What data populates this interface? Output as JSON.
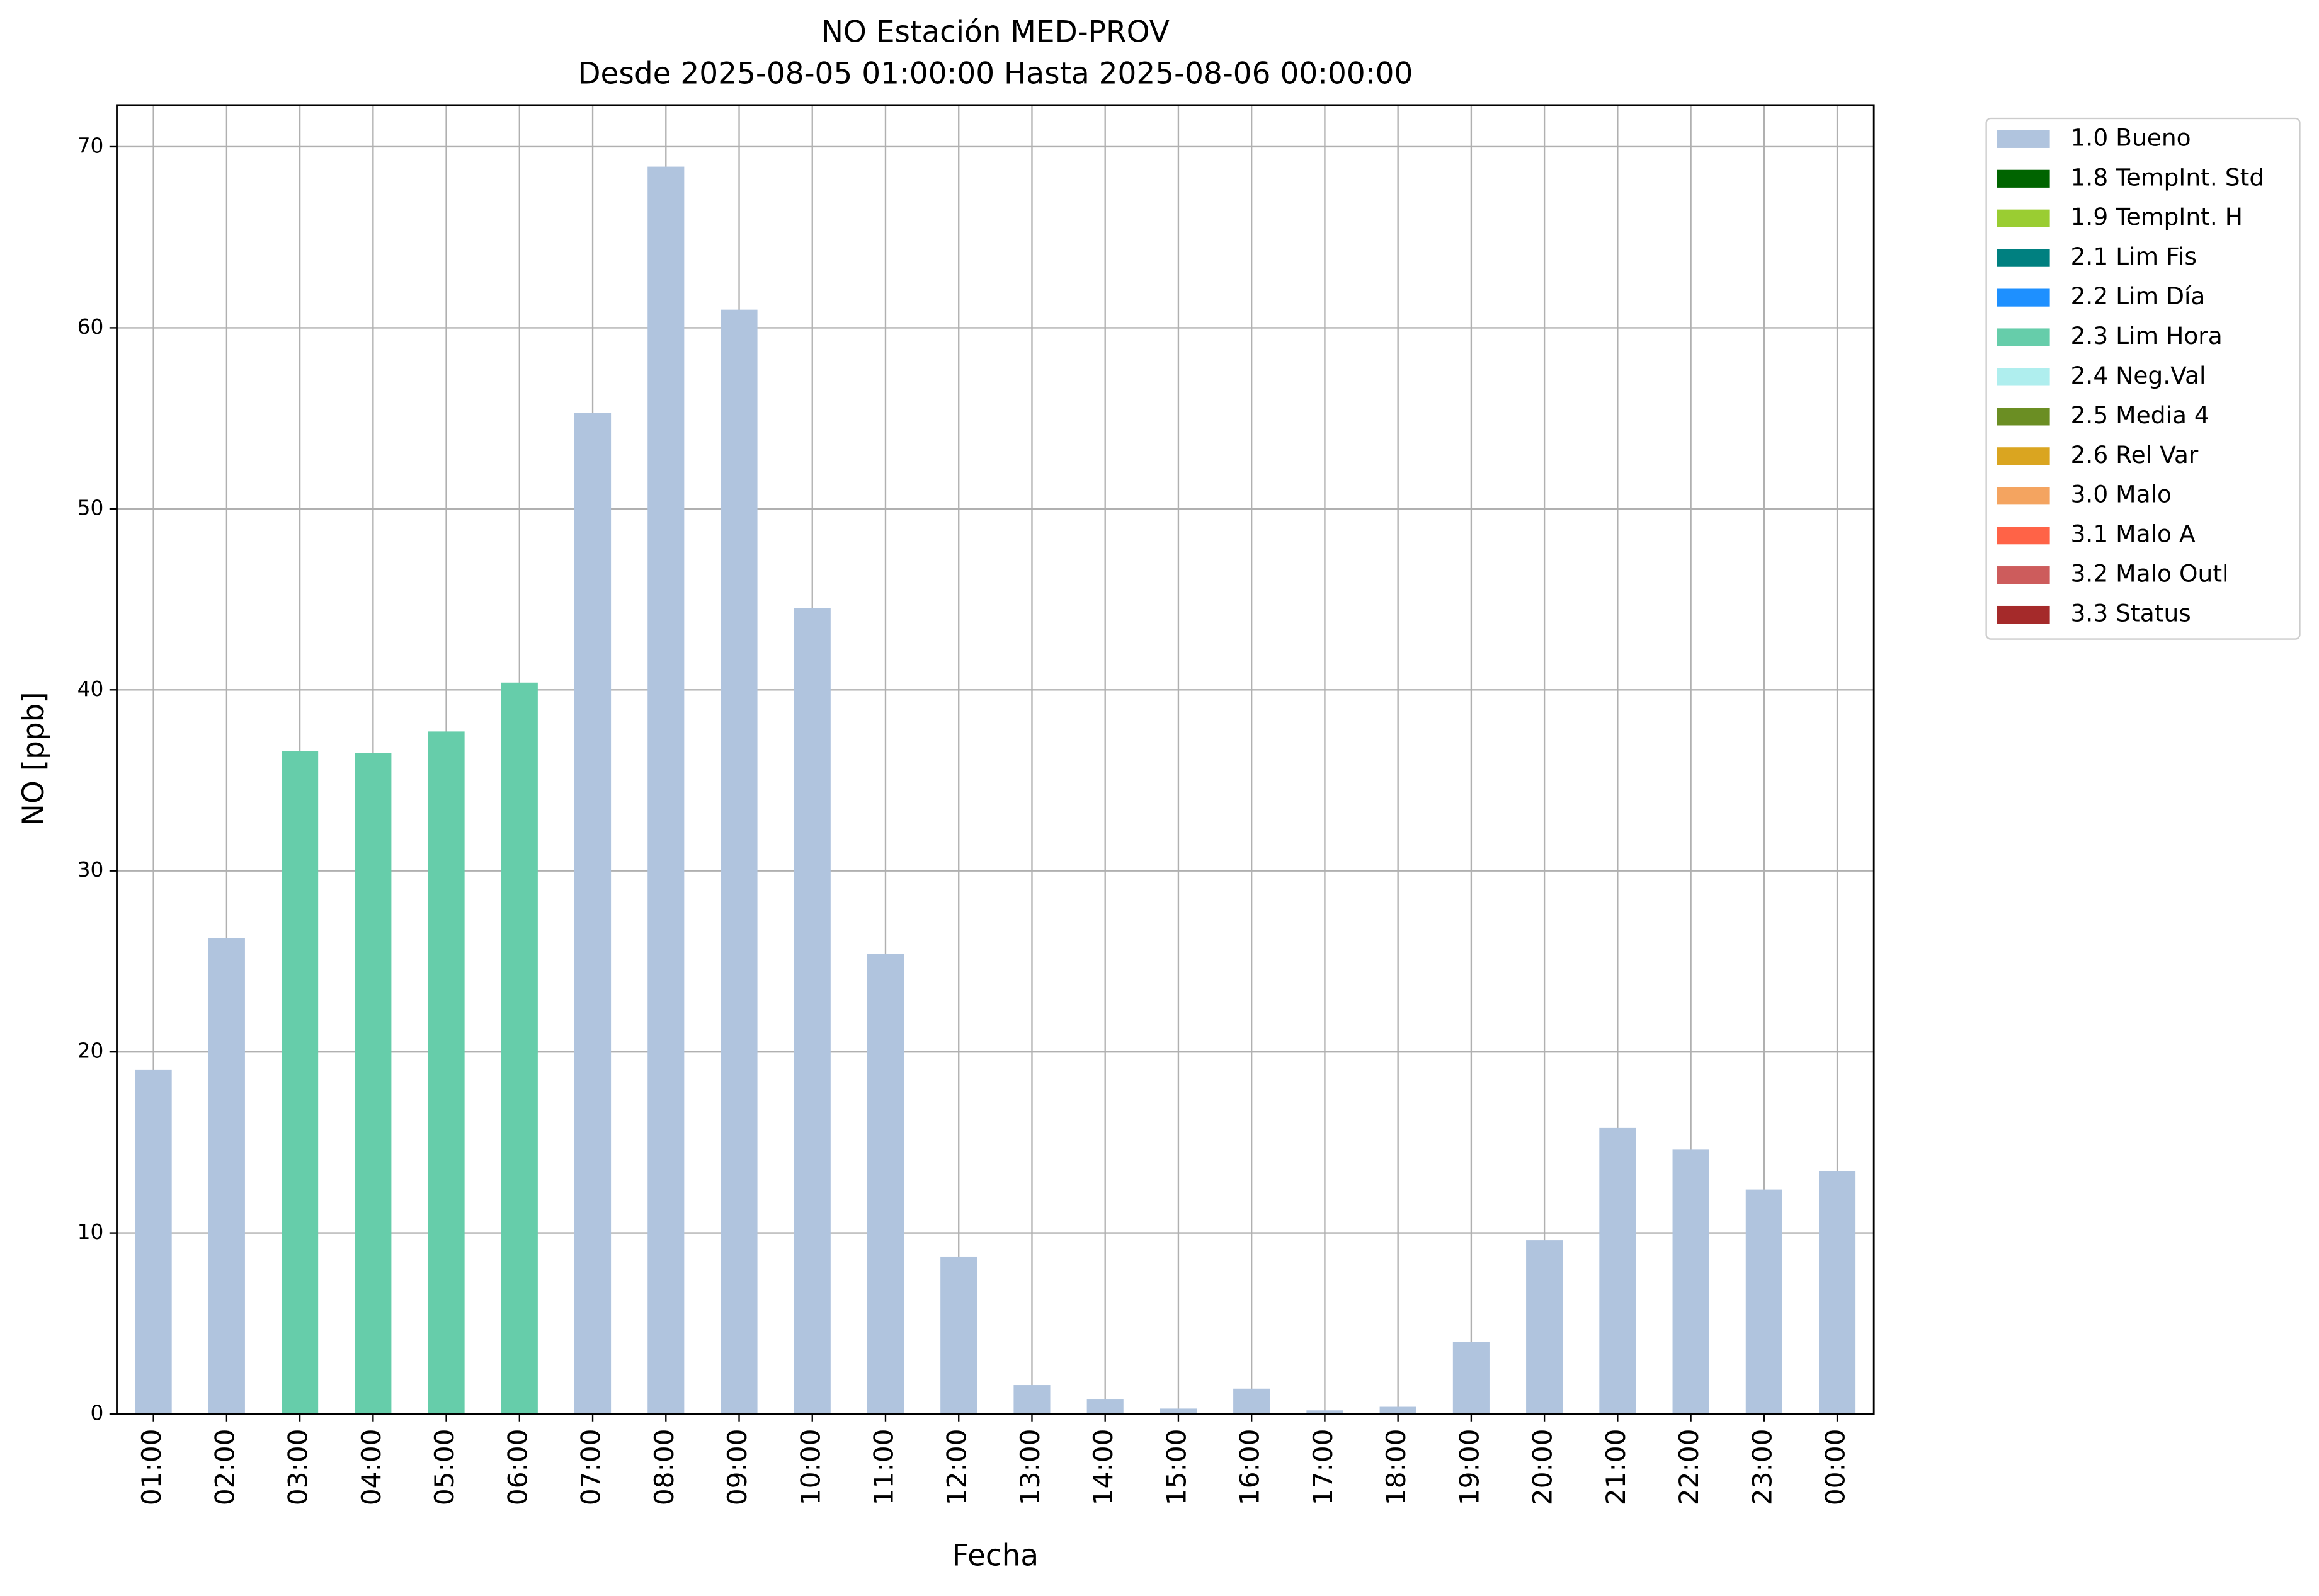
{
  "chart_data": {
    "type": "stacked_bar",
    "title": "NO Estación MED-PROV",
    "subtitle": "Desde 2025-08-05 01:00:00 Hasta 2025-08-06 00:00:00",
    "x_label": "Fecha",
    "y_label": "NO [ppb]",
    "categories": [
      "01:00",
      "02:00",
      "03:00",
      "04:00",
      "05:00",
      "06:00",
      "07:00",
      "08:00",
      "09:00",
      "10:00",
      "11:00",
      "12:00",
      "13:00",
      "14:00",
      "15:00",
      "16:00",
      "17:00",
      "18:00",
      "19:00",
      "20:00",
      "21:00",
      "22:00",
      "23:00",
      "00:00"
    ],
    "series": [
      {
        "name": "1.0 Bueno",
        "color": "#b0c4de",
        "values": [
          19.0,
          26.3,
          null,
          null,
          null,
          null,
          55.3,
          68.9,
          61.0,
          44.5,
          25.4,
          8.7,
          1.6,
          0.8,
          0.3,
          1.4,
          0.2,
          0.4,
          4.0,
          9.6,
          15.8,
          14.6,
          12.4,
          13.4
        ]
      },
      {
        "name": "1.8 TempInt. Std",
        "color": "#006400",
        "values": [
          null,
          null,
          null,
          null,
          null,
          null,
          null,
          null,
          null,
          null,
          null,
          null,
          null,
          null,
          null,
          null,
          null,
          null,
          null,
          null,
          null,
          null,
          null,
          null
        ]
      },
      {
        "name": "1.9 TempInt. H",
        "color": "#9acd32",
        "values": [
          null,
          null,
          null,
          null,
          null,
          null,
          null,
          null,
          null,
          null,
          null,
          null,
          null,
          null,
          null,
          null,
          null,
          null,
          null,
          null,
          null,
          null,
          null,
          null
        ]
      },
      {
        "name": "2.1 Lim Fis",
        "color": "#008080",
        "values": [
          null,
          null,
          null,
          null,
          null,
          null,
          null,
          null,
          null,
          null,
          null,
          null,
          null,
          null,
          null,
          null,
          null,
          null,
          null,
          null,
          null,
          null,
          null,
          null
        ]
      },
      {
        "name": "2.2 Lim Día",
        "color": "#1e90ff",
        "values": [
          null,
          null,
          null,
          null,
          null,
          null,
          null,
          null,
          null,
          null,
          null,
          null,
          null,
          null,
          null,
          null,
          null,
          null,
          null,
          null,
          null,
          null,
          null,
          null
        ]
      },
      {
        "name": "2.3 Lim Hora",
        "color": "#66cdaa",
        "values": [
          null,
          null,
          36.6,
          36.5,
          37.7,
          40.4,
          null,
          null,
          null,
          null,
          null,
          null,
          null,
          null,
          null,
          null,
          null,
          null,
          null,
          null,
          null,
          null,
          null,
          null
        ]
      },
      {
        "name": "2.4 Neg.Val",
        "color": "#afeeee",
        "values": [
          null,
          null,
          null,
          null,
          null,
          null,
          null,
          null,
          null,
          null,
          null,
          null,
          null,
          null,
          null,
          null,
          null,
          null,
          null,
          null,
          null,
          null,
          null,
          null
        ]
      },
      {
        "name": "2.5 Media 4",
        "color": "#6b8e23",
        "values": [
          null,
          null,
          null,
          null,
          null,
          null,
          null,
          null,
          null,
          null,
          null,
          null,
          null,
          null,
          null,
          null,
          null,
          null,
          null,
          null,
          null,
          null,
          null,
          null
        ]
      },
      {
        "name": "2.6 Rel Var",
        "color": "#daa520",
        "values": [
          null,
          null,
          null,
          null,
          null,
          null,
          null,
          null,
          null,
          null,
          null,
          null,
          null,
          null,
          null,
          null,
          null,
          null,
          null,
          null,
          null,
          null,
          null,
          null
        ]
      },
      {
        "name": "3.0 Malo",
        "color": "#f4a460",
        "values": [
          null,
          null,
          null,
          null,
          null,
          null,
          null,
          null,
          null,
          null,
          null,
          null,
          null,
          null,
          null,
          null,
          null,
          null,
          null,
          null,
          null,
          null,
          null,
          null
        ]
      },
      {
        "name": "3.1 Malo A",
        "color": "#ff6347",
        "values": [
          null,
          null,
          null,
          null,
          null,
          null,
          null,
          null,
          null,
          null,
          null,
          null,
          null,
          null,
          null,
          null,
          null,
          null,
          null,
          null,
          null,
          null,
          null,
          null
        ]
      },
      {
        "name": "3.2 Malo Outl",
        "color": "#cd5c5c",
        "values": [
          null,
          null,
          null,
          null,
          null,
          null,
          null,
          null,
          null,
          null,
          null,
          null,
          null,
          null,
          null,
          null,
          null,
          null,
          null,
          null,
          null,
          null,
          null,
          null
        ]
      },
      {
        "name": "3.3 Status",
        "color": "#a52a2a",
        "values": [
          null,
          null,
          null,
          null,
          null,
          null,
          null,
          null,
          null,
          null,
          null,
          null,
          null,
          null,
          null,
          null,
          null,
          null,
          null,
          null,
          null,
          null,
          null,
          null
        ]
      }
    ],
    "ylim": [
      0,
      72.3
    ],
    "yticks": [
      0,
      10,
      20,
      30,
      40,
      50,
      60,
      70
    ],
    "grid": true,
    "legend": "outside-right"
  }
}
